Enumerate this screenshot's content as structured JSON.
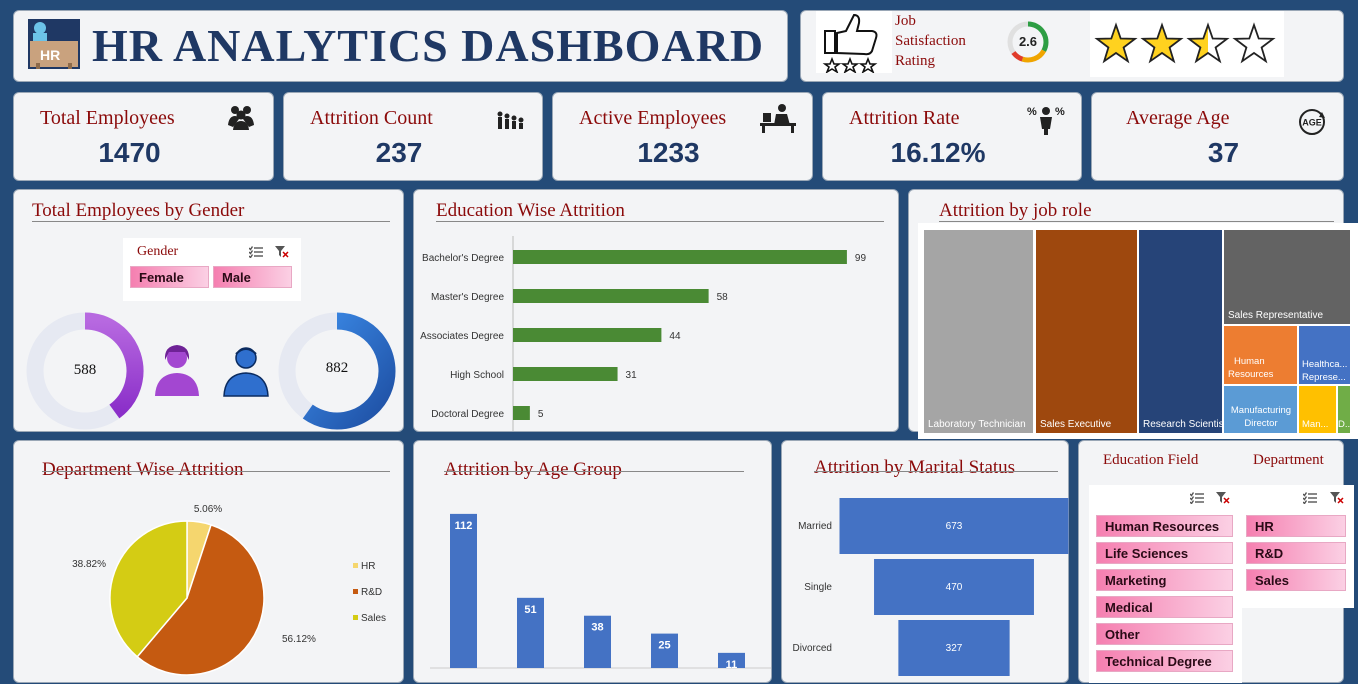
{
  "header": {
    "logo_text": "HR",
    "title": "HR ANALYTICS DASHBOARD"
  },
  "rating": {
    "label_line1": "Job",
    "label_line2": "Satisfaction",
    "label_line3": "Rating",
    "value": "2.6",
    "gauge_fraction": 0.65,
    "stars_filled": 2.5,
    "stars_total": 4,
    "star_color": "#ffd21f"
  },
  "kpis": [
    {
      "label": "Total Employees",
      "value": "1470",
      "icon": "people-group-icon"
    },
    {
      "label": "Attrition Count",
      "value": "237",
      "icon": "people-leaving-icon"
    },
    {
      "label": "Active Employees",
      "value": "1233",
      "icon": "person-at-desk-icon"
    },
    {
      "label": "Attrition Rate",
      "value": "16.12%",
      "icon": "percent-person-icon"
    },
    {
      "label": "Average Age",
      "value": "37",
      "icon": "age-cycle-icon"
    }
  ],
  "gender": {
    "title": "Total Employees by Gender",
    "slicer_title": "Gender",
    "options": [
      "Female",
      "Male"
    ],
    "female_value": "588",
    "male_value": "882",
    "female_color": "#a347d1",
    "male_color": "#2f6fce"
  },
  "education": {
    "title": "Education Wise Attrition",
    "chart_data": {
      "type": "bar",
      "orientation": "horizontal",
      "categories": [
        "Bachelor's Degree",
        "Master's Degree",
        "Associates Degree",
        "High School",
        "Doctoral Degree"
      ],
      "values": [
        99,
        58,
        44,
        31,
        5
      ],
      "color": "#4a8a34",
      "xlim": [
        0,
        110
      ]
    }
  },
  "jobrole": {
    "title": "Attrition by job  role",
    "chart_data": {
      "type": "treemap",
      "items": [
        {
          "name": "Laboratory Technician",
          "color": "#a5a5a5"
        },
        {
          "name": "Sales Executive",
          "color": "#9e480e"
        },
        {
          "name": "Research Scientist",
          "color": "#264478"
        },
        {
          "name": "Sales Representative",
          "color": "#636363"
        },
        {
          "name_line1": "Human",
          "name_line2": "Resources",
          "color": "#ed7d31"
        },
        {
          "name_line1": "Healthca...",
          "name_line2": "Represe...",
          "color": "#4472c4"
        },
        {
          "name_line1": "Manufacturing",
          "name_line2": "Director",
          "color": "#5b9bd5"
        },
        {
          "name": "Man...",
          "color": "#ffc000"
        },
        {
          "name": "D...",
          "color": "#70ad47"
        }
      ]
    }
  },
  "department": {
    "title": "Department Wise Attrition",
    "chart_data": {
      "type": "pie",
      "categories": [
        "HR",
        "R&D",
        "Sales"
      ],
      "values": [
        5.06,
        56.12,
        38.82
      ],
      "labels": [
        "5.06%",
        "56.12%",
        "38.82%"
      ],
      "colors": [
        "#f5d66e",
        "#c55a11",
        "#d4cc14"
      ]
    }
  },
  "age": {
    "title": "Attrition by Age Group",
    "chart_data": {
      "type": "bar",
      "values": [
        112,
        51,
        38,
        25,
        11
      ],
      "labels": [
        "112",
        "51",
        "38",
        "25",
        "11"
      ],
      "color": "#4472c4",
      "ylim": [
        0,
        125
      ]
    }
  },
  "marital": {
    "title": "Attrition by Marital Status",
    "chart_data": {
      "type": "funnel",
      "categories": [
        "Married",
        "Single",
        "Divorced"
      ],
      "values": [
        673,
        470,
        327
      ],
      "labels": [
        "673",
        "470",
        "327"
      ],
      "color": "#4472c4"
    }
  },
  "filters": {
    "education_title": "Education Field",
    "department_title": "Department",
    "education_options": [
      "Human Resources",
      "Life Sciences",
      "Marketing",
      "Medical",
      "Other",
      "Technical Degree"
    ],
    "department_options": [
      "HR",
      "R&D",
      "Sales"
    ]
  }
}
